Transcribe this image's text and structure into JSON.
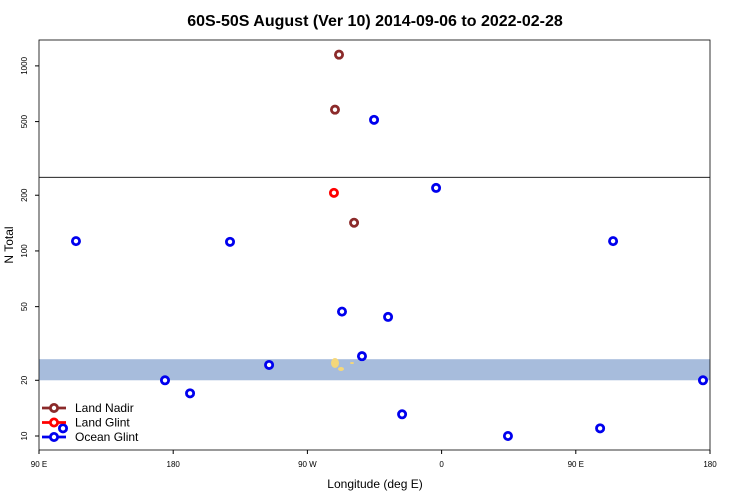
{
  "chart_data": {
    "type": "scatter",
    "title": "60S-50S August (Ver 10)   2014-09-06 to 2022-02-28",
    "x_label": "Longitude (deg E)",
    "y_label": "N Total",
    "xlim": [
      -270,
      180
    ],
    "xticks": [
      {
        "value": -270,
        "label": "90 E"
      },
      {
        "value": -180,
        "label": "180"
      },
      {
        "value": -90,
        "label": "90 W"
      },
      0,
      {
        "value": 90,
        "label": "90 E"
      },
      180
    ],
    "ylim": [
      8.4,
      1380
    ],
    "ylog": true,
    "yticks": [
      10,
      20,
      50,
      100,
      200,
      500,
      1000
    ],
    "band": [
      20,
      26
    ],
    "band_color": "#a7bcdc",
    "hline": 250,
    "legend": "bottom-left",
    "series": [
      {
        "name": "Land Nadir",
        "color": "#8b2a2a",
        "x": [
          -68.8,
          -71.5,
          -58.7
        ],
        "values": [
          1150,
          580,
          142
        ]
      },
      {
        "name": "Land Glint",
        "color": "#ff0000",
        "x": [
          -72.2
        ],
        "values": [
          206
        ]
      },
      {
        "name": "Ocean Glint",
        "color": "#0000ee",
        "x": [
          -45.3,
          -3.7,
          -245.2,
          -141.9,
          115,
          -66.8,
          -35.9,
          -53.4,
          -115.7,
          -185.5,
          -168.7,
          175.3,
          -26.5,
          -253.9,
          106.3,
          44.5
        ],
        "values": [
          511,
          219,
          113,
          112,
          113,
          47,
          44,
          27,
          24.2,
          20,
          17,
          20,
          13.1,
          11,
          11,
          10
        ]
      }
    ]
  }
}
